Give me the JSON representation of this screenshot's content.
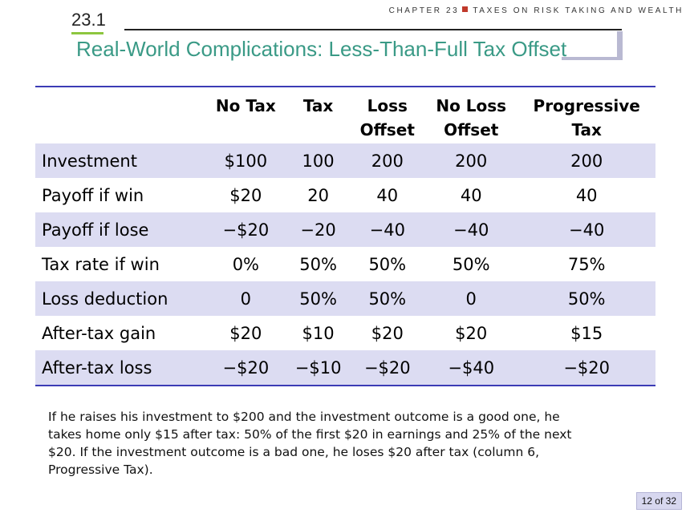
{
  "header": {
    "chapter_label": "CHAPTER 23",
    "chapter_title": "TAXES ON RISK TAKING AND WEALTH",
    "section_number": "23.1",
    "slide_title": "Real-World Complications: Less-Than-Full Tax Offset"
  },
  "table": {
    "columns": [
      {
        "line1": "",
        "line2": ""
      },
      {
        "line1": "No Tax",
        "line2": ""
      },
      {
        "line1": "Tax",
        "line2": ""
      },
      {
        "line1": "Loss",
        "line2": "Offset"
      },
      {
        "line1": "No Loss",
        "line2": "Offset"
      },
      {
        "line1": "Progressive",
        "line2": "Tax"
      }
    ],
    "rows": [
      {
        "label": "Investment",
        "values": [
          "$100",
          "100",
          "200",
          "200",
          "200"
        ]
      },
      {
        "label": "Payoff if win",
        "values": [
          "$20",
          "20",
          "40",
          "40",
          "40"
        ]
      },
      {
        "label": "Payoff if lose",
        "values": [
          "−$20",
          "−20",
          "−40",
          "−40",
          "−40"
        ]
      },
      {
        "label": "Tax rate if win",
        "values": [
          "0%",
          "50%",
          "50%",
          "50%",
          "75%"
        ]
      },
      {
        "label": "Loss deduction",
        "values": [
          "0",
          "50%",
          "50%",
          "0",
          "50%"
        ]
      },
      {
        "label": "After-tax gain",
        "values": [
          "$20",
          "$10",
          "$20",
          "$20",
          "$15"
        ]
      },
      {
        "label": "After-tax loss",
        "values": [
          "−$20",
          "−$10",
          "−$20",
          "−$40",
          "−$20"
        ]
      }
    ]
  },
  "note": "If he raises his investment to $200 and the investment outcome is a good one, he takes home only $15 after tax: 50% of the first $20 in earnings and 25% of the next $20. If the investment outcome is a bad one, he loses $20 after tax (column 6, Progressive Tax).",
  "footer": {
    "page": "12 of 32"
  },
  "colors": {
    "title": "#3a9a86",
    "row_shade": "#dcdcf2",
    "table_rule": "#3b3bb5",
    "chapter_square": "#c0392b",
    "section_underline": "#8dc63f"
  }
}
